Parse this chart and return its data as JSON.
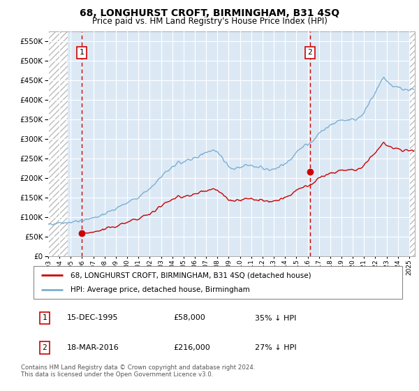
{
  "title": "68, LONGHURST CROFT, BIRMINGHAM, B31 4SQ",
  "subtitle": "Price paid vs. HM Land Registry's House Price Index (HPI)",
  "legend_line1": "68, LONGHURST CROFT, BIRMINGHAM, B31 4SQ (detached house)",
  "legend_line2": "HPI: Average price, detached house, Birmingham",
  "annotation1_date": "15-DEC-1995",
  "annotation1_price": "£58,000",
  "annotation1_hpi": "35% ↓ HPI",
  "annotation2_date": "18-MAR-2016",
  "annotation2_price": "£216,000",
  "annotation2_hpi": "27% ↓ HPI",
  "footer": "Contains HM Land Registry data © Crown copyright and database right 2024.\nThis data is licensed under the Open Government Licence v3.0.",
  "property_color": "#cc0000",
  "hpi_color": "#7bafd4",
  "bg_main": "#dce9f5",
  "grid_color": "#aaaacc",
  "dashed_line_color": "#cc0000",
  "ylim": [
    0,
    575000
  ],
  "yticks": [
    0,
    50000,
    100000,
    150000,
    200000,
    250000,
    300000,
    350000,
    400000,
    450000,
    500000,
    550000
  ],
  "sale1_x": 1995.96,
  "sale1_y": 58000,
  "sale2_x": 2016.21,
  "sale2_y": 216000,
  "xmin": 1993.0,
  "xmax": 2025.5,
  "hatch_xright": 2025.0,
  "xtick_years": [
    1993,
    1994,
    1995,
    1996,
    1997,
    1998,
    1999,
    2000,
    2001,
    2002,
    2003,
    2004,
    2005,
    2006,
    2007,
    2008,
    2009,
    2010,
    2011,
    2012,
    2013,
    2014,
    2015,
    2016,
    2017,
    2018,
    2019,
    2020,
    2021,
    2022,
    2023,
    2024,
    2025
  ]
}
